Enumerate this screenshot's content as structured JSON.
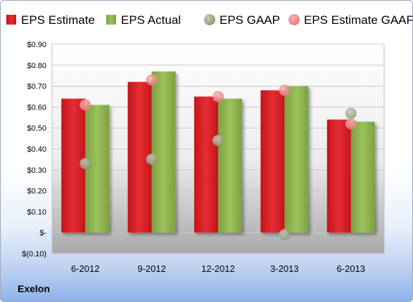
{
  "company": "Exelon",
  "chart_data": {
    "type": "bar",
    "categories": [
      "6-2012",
      "9-2012",
      "12-2012",
      "3-2013",
      "6-2013"
    ],
    "series": [
      {
        "name": "EPS Estimate",
        "kind": "bar",
        "color": "#d92027",
        "values": [
          0.64,
          0.72,
          0.65,
          0.68,
          0.54
        ]
      },
      {
        "name": "EPS Actual",
        "kind": "bar",
        "color": "#8caf4f",
        "values": [
          0.61,
          0.77,
          0.64,
          0.7,
          0.53
        ]
      },
      {
        "name": "EPS GAAP",
        "kind": "marker",
        "color": "#9aa384",
        "values": [
          0.33,
          0.35,
          0.44,
          -0.01,
          0.57
        ]
      },
      {
        "name": "EPS Estimate GAAP",
        "kind": "marker",
        "color": "#ee8a8a",
        "values": [
          0.61,
          0.73,
          0.65,
          0.68,
          0.52
        ]
      }
    ],
    "ylim": [
      -0.1,
      0.9
    ],
    "yticks": [
      -0.1,
      0.0,
      0.1,
      0.2,
      0.3,
      0.4,
      0.5,
      0.6,
      0.7,
      0.8,
      0.9
    ],
    "ytick_labels": [
      "$(0.10)",
      "$-",
      "$0.10",
      "$0.20",
      "$0.30",
      "$0.40",
      "$0.50",
      "$0.60",
      "$0.70",
      "$0.80",
      "$0.90"
    ],
    "grid": true,
    "legend_position": "top"
  }
}
